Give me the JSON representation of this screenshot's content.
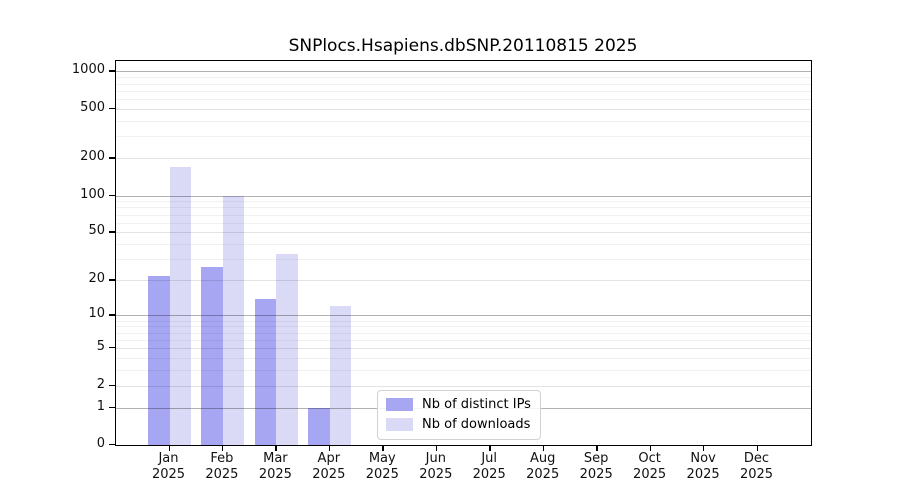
{
  "chart_data": {
    "type": "bar",
    "title": "SNPlocs.Hsapiens.dbSNP.20110815 2025",
    "categories": [
      "Jan",
      "Feb",
      "Mar",
      "Apr",
      "May",
      "Jun",
      "Jul",
      "Aug",
      "Sep",
      "Oct",
      "Nov",
      "Dec"
    ],
    "year_label": "2025",
    "series": [
      {
        "name": "Nb of distinct IPs",
        "color": "#a6a6f2",
        "values": [
          22,
          26,
          14,
          1,
          0,
          0,
          0,
          0,
          0,
          0,
          0,
          0
        ]
      },
      {
        "name": "Nb of downloads",
        "color": "#dadaf7",
        "values": [
          170,
          100,
          33,
          12,
          0,
          0,
          0,
          0,
          0,
          0,
          0,
          0
        ]
      }
    ],
    "xlabel": "",
    "ylabel": "",
    "yscale": "log1p",
    "y_ticks": [
      0,
      1,
      2,
      5,
      10,
      20,
      50,
      100,
      200,
      500,
      1000
    ],
    "y_minor_gridlines": [
      3,
      4,
      6,
      7,
      8,
      9,
      30,
      40,
      60,
      70,
      80,
      90,
      300,
      400,
      600,
      700,
      800,
      900
    ],
    "ylim": [
      0,
      1150
    ],
    "grid": true,
    "legend_position": "lower center"
  }
}
